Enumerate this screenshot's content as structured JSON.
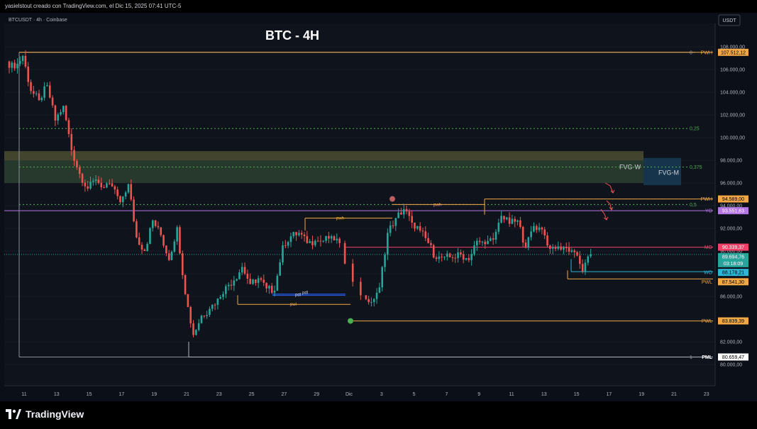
{
  "header": {
    "caption": "yasielstout creado con TradingView.com, el Dic 15, 2025 07:41 UTC-5",
    "symbol_line": "BTCUSDT · 4h · Coinbase",
    "currency_button": "USDT"
  },
  "footer": {
    "brand": "TradingView"
  },
  "colors": {
    "background": "#0f131c",
    "up_candle": "#26a69a",
    "down_candle": "#ef5350",
    "pwh_line": "#f2a743",
    "mo_line": "#f23f69",
    "wo_line": "#2cb6d6",
    "yo_line": "#b575e6",
    "fib_line": "#4caf50",
    "pml_line": "#b2b5be"
  },
  "chart_data": {
    "type": "candlestick",
    "title": "BTC - 4H",
    "xlabel": "",
    "ylabel": "",
    "ylim": [
      79000,
      109600
    ],
    "x_ticks": [
      "11",
      "13",
      "15",
      "17",
      "19",
      "21",
      "23",
      "25",
      "27",
      "29",
      "Dic",
      "3",
      "5",
      "7",
      "9",
      "11",
      "13",
      "15",
      "17",
      "19",
      "21",
      "23"
    ],
    "y_ticks": [
      "108.000,00",
      "106.000,00",
      "104.000,00",
      "102.000,00",
      "100.000,00",
      "98.000,00",
      "96.000,00",
      "94.000,00",
      "92.000,00",
      "90.000,00",
      "88.000,00",
      "86.000,00",
      "84.000,00",
      "82.000,00",
      "80.000,00"
    ],
    "y_tick_values": [
      108000,
      106000,
      104000,
      102000,
      100000,
      98000,
      96000,
      94000,
      92000,
      90000,
      88000,
      86000,
      84000,
      82000,
      80000
    ],
    "price_path": [
      {
        "date": "Nov 10",
        "price": 106700
      },
      {
        "date": "Nov 10.5",
        "price": 106100
      },
      {
        "date": "Nov 11",
        "price": 107200
      },
      {
        "date": "Nov 11.5",
        "price": 104100
      },
      {
        "date": "Nov 12",
        "price": 103300
      },
      {
        "date": "Nov 12.5",
        "price": 104600
      },
      {
        "date": "Nov 13",
        "price": 101500
      },
      {
        "date": "Nov 13.5",
        "price": 102800
      },
      {
        "date": "Nov 14",
        "price": 98900
      },
      {
        "date": "Nov 14.5",
        "price": 96800
      },
      {
        "date": "Nov 15",
        "price": 95500
      },
      {
        "date": "Nov 15.5",
        "price": 96300
      },
      {
        "date": "Nov 16",
        "price": 95600
      },
      {
        "date": "Nov 16.5",
        "price": 95700
      },
      {
        "date": "Nov 17",
        "price": 94300
      },
      {
        "date": "Nov 17.5",
        "price": 95900
      },
      {
        "date": "Nov 18",
        "price": 91200
      },
      {
        "date": "Nov 18.5",
        "price": 90000
      },
      {
        "date": "Nov 19",
        "price": 92700
      },
      {
        "date": "Nov 19.5",
        "price": 91400
      },
      {
        "date": "Nov 20",
        "price": 89200
      },
      {
        "date": "Nov 20.5",
        "price": 92100
      },
      {
        "date": "Nov 21",
        "price": 86200
      },
      {
        "date": "Nov 21.5",
        "price": 82600
      },
      {
        "date": "Nov 22",
        "price": 84300
      },
      {
        "date": "Nov 22.5",
        "price": 84900
      },
      {
        "date": "Nov 23",
        "price": 85800
      },
      {
        "date": "Nov 23.5",
        "price": 86900
      },
      {
        "date": "Nov 24",
        "price": 87400
      },
      {
        "date": "Nov 24.5",
        "price": 88600
      },
      {
        "date": "Nov 25",
        "price": 87100
      },
      {
        "date": "Nov 25.5",
        "price": 87600
      },
      {
        "date": "Nov 26",
        "price": 86700
      },
      {
        "date": "Nov 26.5",
        "price": 86500
      },
      {
        "date": "Nov 27",
        "price": 90500
      },
      {
        "date": "Nov 27.5",
        "price": 91300
      },
      {
        "date": "Nov 28",
        "price": 91600
      },
      {
        "date": "Nov 28.5",
        "price": 90700
      },
      {
        "date": "Nov 29",
        "price": 90900
      },
      {
        "date": "Nov 29.5",
        "price": 90900
      },
      {
        "date": "Nov 30",
        "price": 91300
      },
      {
        "date": "Nov 30.5",
        "price": 90700
      },
      {
        "date": "Dic 1",
        "price": 86100
      },
      {
        "date": "Dic 1.5",
        "price": 85500
      },
      {
        "date": "Dic 2",
        "price": 86800
      },
      {
        "date": "Dic 2.5",
        "price": 91600
      },
      {
        "date": "Dic 3",
        "price": 92900
      },
      {
        "date": "Dic 3.5",
        "price": 93700
      },
      {
        "date": "Dic 4",
        "price": 92500
      },
      {
        "date": "Dic 4.5",
        "price": 91800
      },
      {
        "date": "Dic 5",
        "price": 90700
      },
      {
        "date": "Dic 5.5",
        "price": 89300
      },
      {
        "date": "Dic 6",
        "price": 89500
      },
      {
        "date": "Dic 6.5",
        "price": 89400
      },
      {
        "date": "Dic 7",
        "price": 89700
      },
      {
        "date": "Dic 7.5",
        "price": 89200
      },
      {
        "date": "Dic 8",
        "price": 90900
      },
      {
        "date": "Dic 8.5",
        "price": 90600
      },
      {
        "date": "Dic 9",
        "price": 91000
      },
      {
        "date": "Dic 9.5",
        "price": 93100
      },
      {
        "date": "Dic 10",
        "price": 92400
      },
      {
        "date": "Dic 10.5",
        "price": 92700
      },
      {
        "date": "Dic 11",
        "price": 90300
      },
      {
        "date": "Dic 11.5",
        "price": 92200
      },
      {
        "date": "Dic 12",
        "price": 91900
      },
      {
        "date": "Dic 12.5",
        "price": 90200
      },
      {
        "date": "Dic 13",
        "price": 90400
      },
      {
        "date": "Dic 13.5",
        "price": 90300
      },
      {
        "date": "Dic 14",
        "price": 89900
      },
      {
        "date": "Dic 14.5",
        "price": 88200
      },
      {
        "date": "Dic 15",
        "price": 89700
      }
    ],
    "price_labels": [
      {
        "name": "PWH",
        "value": 107512.12,
        "text": "107.512,12",
        "color": "#f2a743",
        "text_color": "#000000"
      },
      {
        "name": "PWH",
        "value": 94589.0,
        "text": "94.589,00",
        "color": "#f2a743",
        "text_color": "#000000"
      },
      {
        "name": "YO",
        "value": 93551.63,
        "text": "93.551,63",
        "color": "#b575e6",
        "text_color": "#ffffff"
      },
      {
        "name": "MO",
        "value": 90339.37,
        "text": "90.339,37",
        "color": "#f23f69",
        "text_color": "#ffffff"
      },
      {
        "name": "",
        "value": 89694.76,
        "text": "89.694,76",
        "color": "#26a69a",
        "text_color": "#ffffff",
        "sub": "03:18:09"
      },
      {
        "name": "WO",
        "value": 88178.21,
        "text": "88.178,21",
        "color": "#2cb6d6",
        "text_color": "#000000"
      },
      {
        "name": "PWL",
        "value": 87541.3,
        "text": "87.541,30",
        "color": "#f2a743",
        "text_color": "#000000"
      },
      {
        "name": "PWL",
        "value": 83839.39,
        "text": "83.839,39",
        "color": "#f2a743",
        "text_color": "#000000"
      },
      {
        "name": "PML",
        "value": 80659.47,
        "text": "80.659,47",
        "color": "#ffffff",
        "text_color": "#000000"
      }
    ],
    "fib_levels": [
      {
        "label": "0",
        "value": 107512
      },
      {
        "label": "0,25",
        "value": 100800
      },
      {
        "label": "0,375",
        "value": 97400
      },
      {
        "label": "0,5",
        "value": 94100
      },
      {
        "label": "1",
        "value": 80659
      }
    ],
    "zones": [
      {
        "label": "FVG-W",
        "from": 96000,
        "to": 98800
      },
      {
        "label": "FVG-M",
        "from": 95800,
        "to": 98200
      }
    ],
    "annotations": [
      "pwh",
      "pwh",
      "pdl",
      "pdl",
      "pwl"
    ]
  }
}
